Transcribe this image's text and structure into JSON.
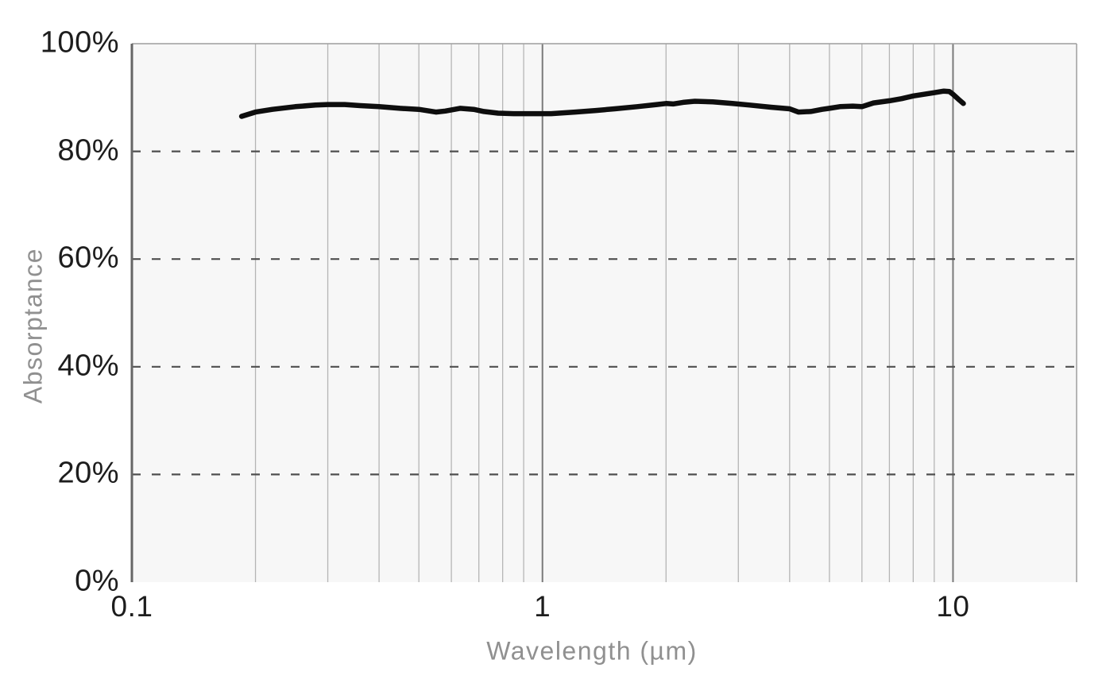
{
  "page": {
    "background": "#ffffff"
  },
  "chart_data": {
    "type": "line",
    "title": "",
    "xlabel": "Wavelength (µm)",
    "ylabel": "Absorptance",
    "x_scale": "log",
    "xlim": [
      0.1,
      20
    ],
    "ylim": [
      0,
      100
    ],
    "grid": "on",
    "legend": "none",
    "x_ticks": [
      {
        "value": 0.1,
        "label": "0.1"
      },
      {
        "value": 1,
        "label": "1"
      },
      {
        "value": 10,
        "label": "10"
      }
    ],
    "y_ticks": [
      {
        "value": 0,
        "label": "0%"
      },
      {
        "value": 20,
        "label": "20%"
      },
      {
        "value": 40,
        "label": "40%"
      },
      {
        "value": 60,
        "label": "60%"
      },
      {
        "value": 80,
        "label": "80%"
      },
      {
        "value": 100,
        "label": "100%"
      }
    ],
    "x_gridlines_minor": [
      0.2,
      0.3,
      0.4,
      0.5,
      0.6,
      0.7,
      0.8,
      0.9,
      2,
      3,
      4,
      5,
      6,
      7,
      8,
      9
    ],
    "x_gridlines_major": [
      1,
      10
    ],
    "y_gridlines_dashed": [
      20,
      40,
      60,
      80
    ],
    "series": [
      {
        "name": "Absorptance",
        "color": "#0e0e0e",
        "points": [
          [
            0.185,
            86.5
          ],
          [
            0.2,
            87.3
          ],
          [
            0.22,
            87.8
          ],
          [
            0.25,
            88.3
          ],
          [
            0.28,
            88.6
          ],
          [
            0.3,
            88.7
          ],
          [
            0.33,
            88.7
          ],
          [
            0.36,
            88.5
          ],
          [
            0.4,
            88.3
          ],
          [
            0.45,
            88.0
          ],
          [
            0.5,
            87.8
          ],
          [
            0.55,
            87.3
          ],
          [
            0.58,
            87.5
          ],
          [
            0.63,
            88.0
          ],
          [
            0.68,
            87.8
          ],
          [
            0.72,
            87.4
          ],
          [
            0.78,
            87.1
          ],
          [
            0.85,
            87.0
          ],
          [
            0.95,
            87.0
          ],
          [
            1.05,
            87.0
          ],
          [
            1.2,
            87.3
          ],
          [
            1.35,
            87.6
          ],
          [
            1.5,
            87.9
          ],
          [
            1.7,
            88.3
          ],
          [
            1.9,
            88.7
          ],
          [
            2.0,
            88.9
          ],
          [
            2.08,
            88.8
          ],
          [
            2.2,
            89.1
          ],
          [
            2.35,
            89.3
          ],
          [
            2.6,
            89.2
          ],
          [
            2.9,
            88.9
          ],
          [
            3.2,
            88.6
          ],
          [
            3.6,
            88.2
          ],
          [
            4.0,
            87.9
          ],
          [
            4.2,
            87.3
          ],
          [
            4.5,
            87.4
          ],
          [
            4.8,
            87.8
          ],
          [
            5.0,
            88.0
          ],
          [
            5.3,
            88.3
          ],
          [
            5.7,
            88.4
          ],
          [
            6.0,
            88.3
          ],
          [
            6.4,
            89.0
          ],
          [
            7.0,
            89.4
          ],
          [
            7.5,
            89.8
          ],
          [
            8.0,
            90.3
          ],
          [
            8.5,
            90.6
          ],
          [
            9.0,
            90.9
          ],
          [
            9.5,
            91.2
          ],
          [
            9.8,
            91.1
          ],
          [
            10.0,
            90.6
          ],
          [
            10.3,
            89.7
          ],
          [
            10.6,
            88.9
          ]
        ]
      }
    ],
    "colors": {
      "plot_background": "#f7f7f7",
      "grid_minor": "#b5b5b5",
      "grid_major": "#7a7a7a",
      "grid_dashed": "#4f4f4f",
      "axis_line": "#666666",
      "plot_border": "#9e9e9e",
      "line": "#0e0e0e",
      "tick_text": "#1d1d1d",
      "axis_label_text": "#909090"
    }
  }
}
